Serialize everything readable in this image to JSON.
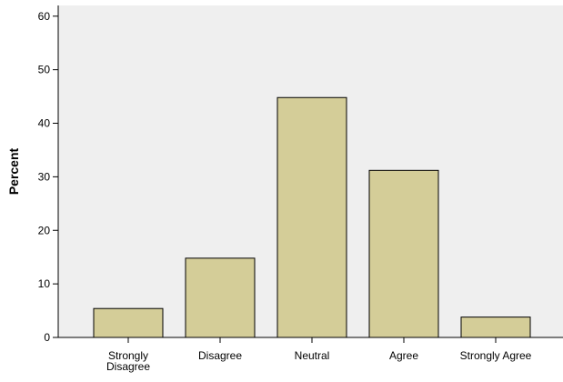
{
  "chart_data": {
    "type": "bar",
    "title": "",
    "xlabel": "",
    "ylabel": "Percent",
    "categories": [
      [
        "Strongly",
        "Disagree"
      ],
      [
        "Disagree"
      ],
      [
        "Neutral"
      ],
      [
        "Agree"
      ],
      [
        "Strongly Agree"
      ]
    ],
    "values": [
      5.4,
      14.8,
      44.8,
      31.2,
      3.8
    ],
    "ylim": [
      0,
      62
    ],
    "yticks": [
      0,
      10,
      20,
      30,
      40,
      50,
      60
    ],
    "grid": false,
    "legend": "none",
    "colors": {
      "plot_background": "#efefef",
      "bar_fill": "#d4cd98",
      "bar_stroke": "#000000",
      "axis": "#000000"
    }
  }
}
